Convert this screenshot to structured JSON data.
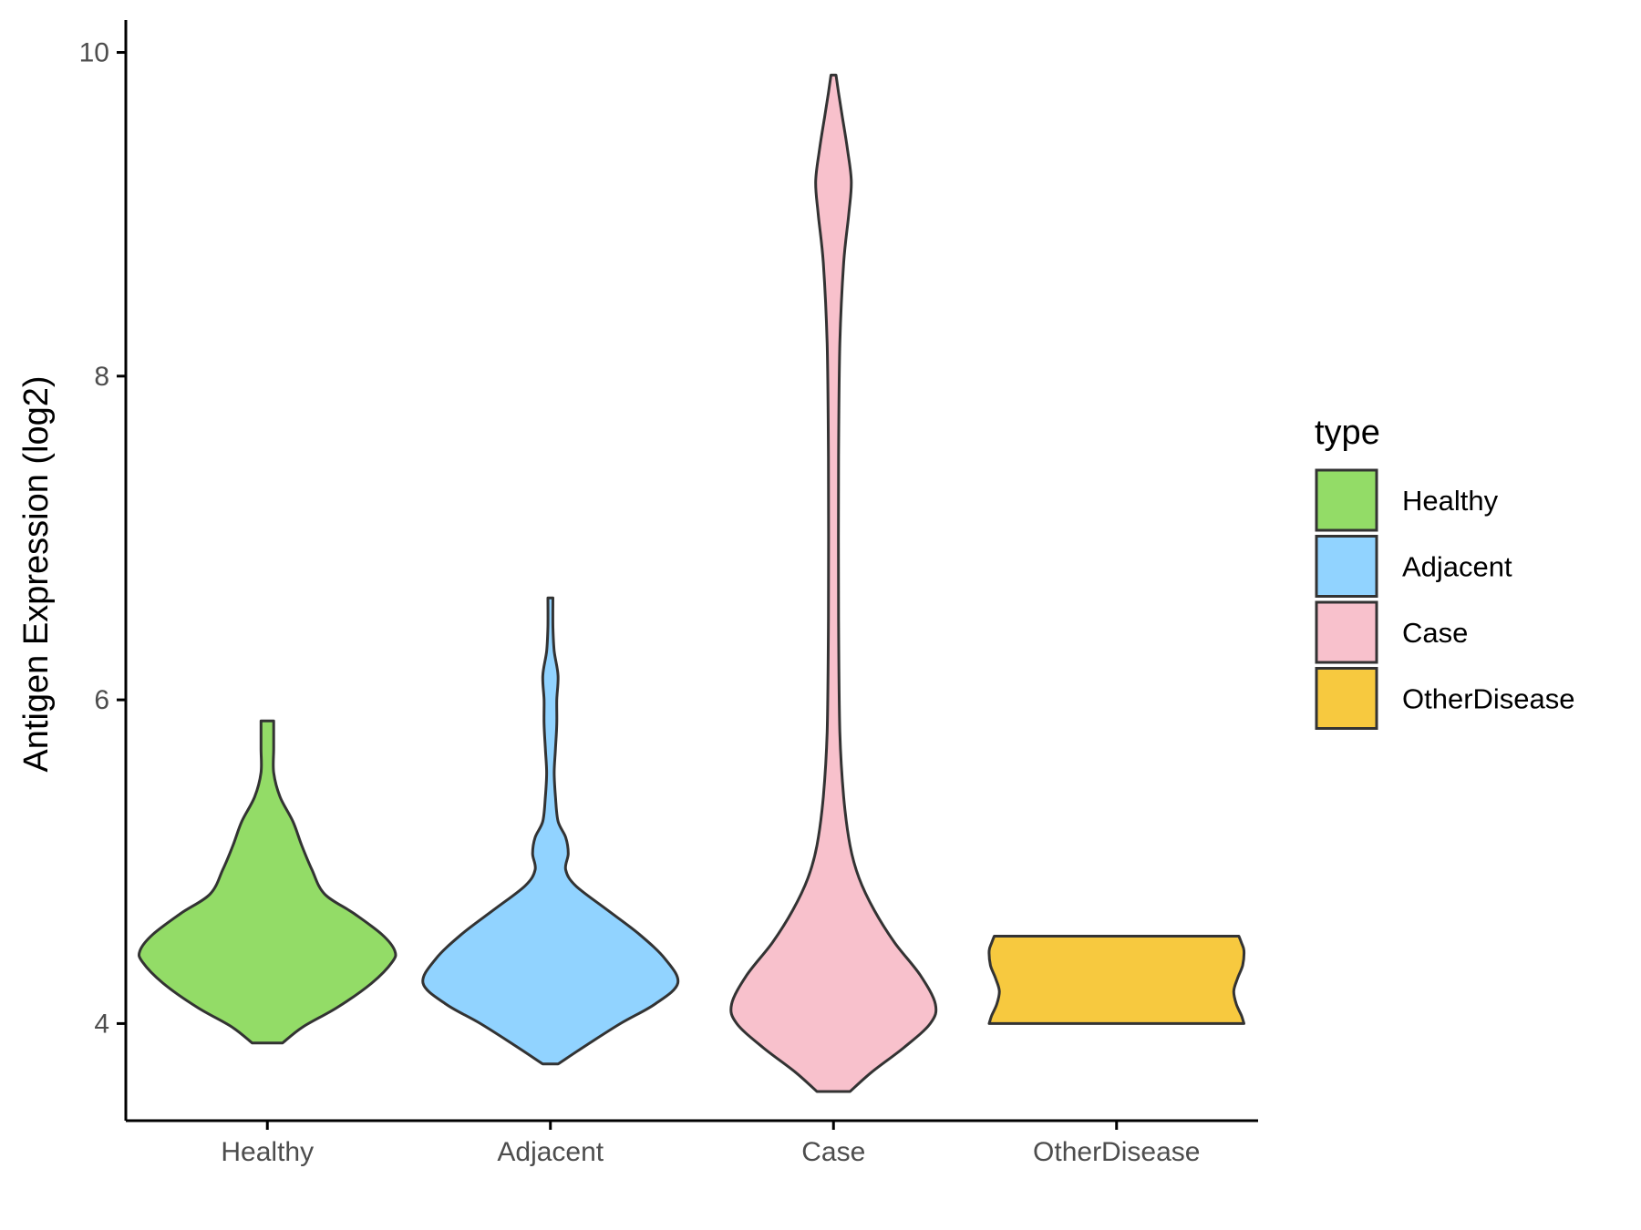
{
  "chart_data": {
    "type": "violin",
    "ylabel": "Antigen Expression (log2)",
    "xlabel": "",
    "ylim": [
      3.4,
      10.2
    ],
    "yticks": [
      4,
      6,
      8,
      10
    ],
    "grid": false,
    "legend": {
      "title": "type",
      "placement": "right"
    },
    "categories": [
      "Healthy",
      "Adjacent",
      "Case",
      "OtherDisease"
    ],
    "series": [
      {
        "name": "Healthy",
        "color": "#93DC67",
        "range": [
          3.88,
          5.87
        ],
        "density": [
          [
            3.88,
            0.12
          ],
          [
            3.98,
            0.28
          ],
          [
            4.1,
            0.55
          ],
          [
            4.25,
            0.82
          ],
          [
            4.38,
            0.98
          ],
          [
            4.45,
            1.0
          ],
          [
            4.55,
            0.9
          ],
          [
            4.68,
            0.68
          ],
          [
            4.8,
            0.45
          ],
          [
            4.95,
            0.35
          ],
          [
            5.1,
            0.27
          ],
          [
            5.25,
            0.2
          ],
          [
            5.4,
            0.1
          ],
          [
            5.55,
            0.05
          ],
          [
            5.7,
            0.05
          ],
          [
            5.87,
            0.05
          ]
        ]
      },
      {
        "name": "Adjacent",
        "color": "#91D3FF",
        "range": [
          3.75,
          6.63
        ],
        "density": [
          [
            3.75,
            0.06
          ],
          [
            3.85,
            0.25
          ],
          [
            4.0,
            0.55
          ],
          [
            4.12,
            0.82
          ],
          [
            4.25,
            1.0
          ],
          [
            4.4,
            0.9
          ],
          [
            4.55,
            0.7
          ],
          [
            4.7,
            0.45
          ],
          [
            4.85,
            0.2
          ],
          [
            4.95,
            0.12
          ],
          [
            5.05,
            0.14
          ],
          [
            5.15,
            0.12
          ],
          [
            5.25,
            0.06
          ],
          [
            5.4,
            0.04
          ],
          [
            5.55,
            0.03
          ],
          [
            5.7,
            0.04
          ],
          [
            5.85,
            0.05
          ],
          [
            6.0,
            0.05
          ],
          [
            6.15,
            0.06
          ],
          [
            6.3,
            0.03
          ],
          [
            6.45,
            0.02
          ],
          [
            6.63,
            0.02
          ]
        ]
      },
      {
        "name": "Case",
        "color": "#F8C1CC",
        "range": [
          3.58,
          9.86
        ],
        "density": [
          [
            3.58,
            0.13
          ],
          [
            3.7,
            0.3
          ],
          [
            3.85,
            0.55
          ],
          [
            4.0,
            0.76
          ],
          [
            4.12,
            0.8
          ],
          [
            4.3,
            0.68
          ],
          [
            4.5,
            0.48
          ],
          [
            4.7,
            0.32
          ],
          [
            4.9,
            0.2
          ],
          [
            5.1,
            0.13
          ],
          [
            5.4,
            0.08
          ],
          [
            5.8,
            0.05
          ],
          [
            6.5,
            0.04
          ],
          [
            7.5,
            0.04
          ],
          [
            8.2,
            0.05
          ],
          [
            8.7,
            0.08
          ],
          [
            9.0,
            0.12
          ],
          [
            9.2,
            0.14
          ],
          [
            9.4,
            0.11
          ],
          [
            9.6,
            0.07
          ],
          [
            9.75,
            0.04
          ],
          [
            9.86,
            0.02
          ]
        ]
      },
      {
        "name": "OtherDisease",
        "color": "#F7C93F",
        "range": [
          4.0,
          4.54
        ],
        "density": [
          [
            4.0,
            1.0
          ],
          [
            4.05,
            0.98
          ],
          [
            4.12,
            0.94
          ],
          [
            4.2,
            0.92
          ],
          [
            4.28,
            0.95
          ],
          [
            4.36,
            0.99
          ],
          [
            4.45,
            1.0
          ],
          [
            4.5,
            0.98
          ],
          [
            4.54,
            0.96
          ]
        ]
      }
    ]
  }
}
